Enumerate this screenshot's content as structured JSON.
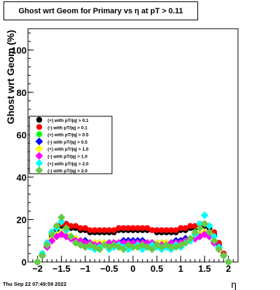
{
  "chart_data": {
    "type": "scatter",
    "title": "Ghost wrt Geom for Primary vs    η at pT > 0.11",
    "xlabel": "η",
    "ylabel": "Ghost wrt Geom (%)",
    "xlim": [
      -2.2,
      2.2
    ],
    "ylim": [
      0,
      110
    ],
    "xticks": [
      "−2",
      "−1.5",
      "−1",
      "−0.5",
      "0",
      "0.5",
      "1",
      "1.5",
      "2"
    ],
    "yticks": [
      "0",
      "20",
      "40",
      "60",
      "80",
      "100"
    ],
    "grid": true,
    "legend_position": "left-middle",
    "series": [
      {
        "name": "(+) with pT/|q| > 0.1",
        "marker": "circle",
        "color": "#000000",
        "x": [
          -2.0,
          -1.9,
          -1.8,
          -1.7,
          -1.6,
          -1.5,
          -1.4,
          -1.3,
          -1.2,
          -1.1,
          -1.0,
          -0.9,
          -0.8,
          -0.7,
          -0.6,
          -0.5,
          -0.4,
          -0.3,
          -0.2,
          -0.1,
          0.0,
          0.1,
          0.2,
          0.3,
          0.4,
          0.5,
          0.6,
          0.7,
          0.8,
          0.9,
          1.0,
          1.1,
          1.2,
          1.3,
          1.4,
          1.5,
          1.6,
          1.7,
          1.8,
          1.9,
          2.0
        ],
        "y": [
          0,
          3,
          8,
          12,
          15,
          17,
          17,
          16,
          16,
          15,
          15,
          14,
          14,
          14,
          14,
          14,
          14,
          15,
          15,
          15,
          15,
          15,
          15,
          15,
          15,
          14,
          14,
          14,
          14,
          14,
          15,
          15,
          16,
          16,
          17,
          17,
          16,
          13,
          8,
          3,
          0
        ]
      },
      {
        "name": "(-) with pT/|q| > 0.1",
        "marker": "circle",
        "color": "#ff0000",
        "x": [
          -2.0,
          -1.9,
          -1.8,
          -1.7,
          -1.6,
          -1.5,
          -1.4,
          -1.3,
          -1.2,
          -1.1,
          -1.0,
          -0.9,
          -0.8,
          -0.7,
          -0.6,
          -0.5,
          -0.4,
          -0.3,
          -0.2,
          -0.1,
          0.0,
          0.1,
          0.2,
          0.3,
          0.4,
          0.5,
          0.6,
          0.7,
          0.8,
          0.9,
          1.0,
          1.1,
          1.2,
          1.3,
          1.4,
          1.5,
          1.6,
          1.7,
          1.8,
          1.9,
          2.0
        ],
        "y": [
          0,
          4,
          9,
          14,
          17,
          18,
          18,
          17,
          17,
          16,
          16,
          15,
          15,
          15,
          15,
          15,
          15,
          16,
          16,
          16,
          16,
          16,
          16,
          16,
          15,
          15,
          15,
          15,
          15,
          15,
          16,
          16,
          17,
          17,
          18,
          18,
          17,
          14,
          9,
          4,
          0
        ]
      },
      {
        "name": "(+) with pT/|q| > 0.5",
        "marker": "circle",
        "color": "#00ff00",
        "x": [
          -2.0,
          -1.9,
          -1.8,
          -1.7,
          -1.6,
          -1.5,
          -1.4,
          -1.3,
          -1.2,
          -1.1,
          -1.0,
          -0.9,
          -0.8,
          -0.7,
          -0.6,
          -0.5,
          -0.4,
          -0.3,
          -0.2,
          -0.1,
          0.0,
          0.1,
          0.2,
          0.3,
          0.4,
          0.5,
          0.6,
          0.7,
          0.8,
          0.9,
          1.0,
          1.1,
          1.2,
          1.3,
          1.4,
          1.5,
          1.6,
          1.7,
          1.8,
          1.9,
          2.0
        ],
        "y": [
          0,
          3,
          7,
          10,
          12,
          13,
          13,
          12,
          11,
          10,
          9,
          9,
          9,
          8,
          9,
          9,
          9,
          9,
          9,
          10,
          9,
          9,
          9,
          9,
          9,
          9,
          8,
          9,
          9,
          9,
          10,
          10,
          11,
          12,
          13,
          13,
          12,
          9,
          6,
          3,
          0
        ]
      },
      {
        "name": "(-) with pT/|q| > 0.5",
        "marker": "diamond",
        "color": "#0000ff",
        "x": [
          -2.0,
          -1.9,
          -1.8,
          -1.7,
          -1.6,
          -1.5,
          -1.4,
          -1.3,
          -1.2,
          -1.1,
          -1.0,
          -0.9,
          -0.8,
          -0.7,
          -0.6,
          -0.5,
          -0.4,
          -0.3,
          -0.2,
          -0.1,
          0.0,
          0.1,
          0.2,
          0.3,
          0.4,
          0.5,
          0.6,
          0.7,
          0.8,
          0.9,
          1.0,
          1.1,
          1.2,
          1.3,
          1.4,
          1.5,
          1.6,
          1.7,
          1.8,
          1.9,
          2.0
        ],
        "y": [
          0,
          3,
          8,
          11,
          13,
          14,
          13,
          12,
          11,
          10,
          10,
          9,
          9,
          9,
          9,
          9,
          9,
          9,
          10,
          10,
          10,
          10,
          10,
          9,
          9,
          9,
          9,
          9,
          9,
          10,
          10,
          11,
          11,
          12,
          13,
          14,
          13,
          10,
          7,
          3,
          0
        ]
      },
      {
        "name": "(+) with pT/|q| > 1.0",
        "marker": "diamond",
        "color": "#ffff00",
        "x": [
          -2.0,
          -1.9,
          -1.8,
          -1.7,
          -1.6,
          -1.5,
          -1.4,
          -1.3,
          -1.2,
          -1.1,
          -1.0,
          -0.9,
          -0.8,
          -0.7,
          -0.6,
          -0.5,
          -0.4,
          -0.3,
          -0.2,
          -0.1,
          0.0,
          0.1,
          0.2,
          0.3,
          0.4,
          0.5,
          0.6,
          0.7,
          0.8,
          0.9,
          1.0,
          1.1,
          1.2,
          1.3,
          1.4,
          1.5,
          1.6,
          1.7,
          1.8,
          1.9,
          2.0
        ],
        "y": [
          0,
          3,
          7,
          11,
          13,
          14,
          13,
          12,
          11,
          10,
          9,
          9,
          9,
          9,
          9,
          9,
          9,
          9,
          9,
          9,
          9,
          9,
          9,
          9,
          9,
          9,
          9,
          9,
          9,
          9,
          9,
          10,
          11,
          12,
          13,
          14,
          13,
          10,
          6,
          3,
          0
        ]
      },
      {
        "name": "(-) with pT/|q| > 1.0",
        "marker": "diamond",
        "color": "#ff00ff",
        "x": [
          -2.0,
          -1.9,
          -1.8,
          -1.7,
          -1.6,
          -1.5,
          -1.4,
          -1.3,
          -1.2,
          -1.1,
          -1.0,
          -0.9,
          -0.8,
          -0.7,
          -0.6,
          -0.5,
          -0.4,
          -0.3,
          -0.2,
          -0.1,
          0.0,
          0.1,
          0.2,
          0.3,
          0.4,
          0.5,
          0.6,
          0.7,
          0.8,
          0.9,
          1.0,
          1.1,
          1.2,
          1.3,
          1.4,
          1.5,
          1.6,
          1.7,
          1.8,
          1.9,
          2.0
        ],
        "y": [
          0,
          3,
          7,
          10,
          12,
          13,
          12,
          11,
          10,
          10,
          9,
          9,
          8,
          8,
          8,
          9,
          9,
          9,
          9,
          9,
          9,
          9,
          9,
          9,
          9,
          8,
          8,
          8,
          9,
          9,
          9,
          10,
          10,
          11,
          12,
          13,
          12,
          9,
          6,
          3,
          0
        ]
      },
      {
        "name": "(+) with pT/|q| > 2.0",
        "marker": "diamond",
        "color": "#00ffff",
        "x": [
          -2.0,
          -1.9,
          -1.8,
          -1.7,
          -1.6,
          -1.5,
          -1.4,
          -1.3,
          -1.2,
          -1.1,
          -1.0,
          -0.9,
          -0.8,
          -0.7,
          -0.6,
          -0.5,
          -0.4,
          -0.3,
          -0.2,
          -0.1,
          0.0,
          0.1,
          0.2,
          0.3,
          0.4,
          0.5,
          0.6,
          0.7,
          0.8,
          0.9,
          1.0,
          1.1,
          1.2,
          1.3,
          1.4,
          1.5,
          1.6,
          1.7,
          1.8,
          1.9,
          2.0
        ],
        "y": [
          0,
          4,
          9,
          14,
          16,
          19,
          15,
          12,
          9,
          8,
          7,
          7,
          6,
          7,
          8,
          6,
          7,
          8,
          7,
          6,
          7,
          8,
          6,
          7,
          8,
          7,
          6,
          7,
          6,
          8,
          7,
          9,
          10,
          13,
          18,
          22,
          17,
          12,
          7,
          3,
          0
        ]
      },
      {
        "name": "(-) with pT/|q| > 2.0",
        "marker": "diamond",
        "color": "#66cc44",
        "x": [
          -2.0,
          -1.9,
          -1.8,
          -1.7,
          -1.6,
          -1.5,
          -1.4,
          -1.3,
          -1.2,
          -1.1,
          -1.0,
          -0.9,
          -0.8,
          -0.7,
          -0.6,
          -0.5,
          -0.4,
          -0.3,
          -0.2,
          -0.1,
          0.0,
          0.1,
          0.2,
          0.3,
          0.4,
          0.5,
          0.6,
          0.7,
          0.8,
          0.9,
          1.0,
          1.1,
          1.2,
          1.3,
          1.4,
          1.5,
          1.6,
          1.7,
          1.8,
          1.9,
          2.0
        ],
        "y": [
          0,
          3,
          8,
          13,
          17,
          21,
          16,
          12,
          9,
          8,
          7,
          8,
          7,
          6,
          8,
          7,
          8,
          7,
          6,
          8,
          7,
          7,
          8,
          7,
          6,
          8,
          7,
          8,
          7,
          7,
          8,
          9,
          11,
          14,
          16,
          18,
          14,
          10,
          6,
          3,
          0
        ]
      }
    ]
  },
  "footer": {
    "date": "Thu Sep 22 07:49:59 2022"
  }
}
